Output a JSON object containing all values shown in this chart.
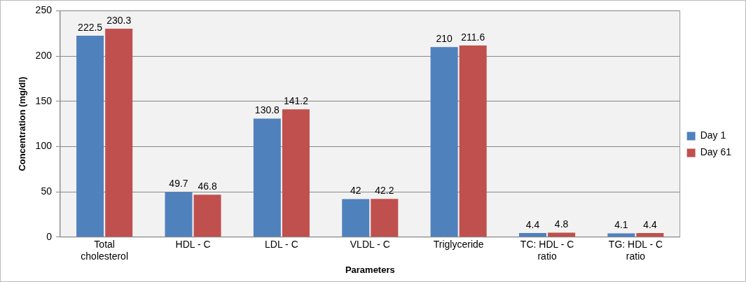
{
  "chart_data": {
    "type": "bar",
    "xlabel": "Parameters",
    "ylabel": "Concentration (mg/dl)",
    "categories": [
      "Total cholesterol",
      "HDL - C",
      "LDL - C",
      "VLDL - C",
      "Triglyceride",
      "TC: HDL - C ratio",
      "TG: HDL - C ratio"
    ],
    "series": [
      {
        "name": "Day 1",
        "color": "#4f81bd",
        "values": [
          222.5,
          49.7,
          130.8,
          42,
          210,
          4.4,
          4.1
        ]
      },
      {
        "name": "Day 61",
        "color": "#c0504d",
        "values": [
          230.3,
          46.8,
          141.2,
          42.2,
          211.6,
          4.8,
          4.4
        ]
      }
    ],
    "ylim": [
      0,
      250
    ],
    "yticks": [
      0,
      50,
      100,
      150,
      200,
      250
    ],
    "grid": "y",
    "legend": "right",
    "data_labels": true
  }
}
